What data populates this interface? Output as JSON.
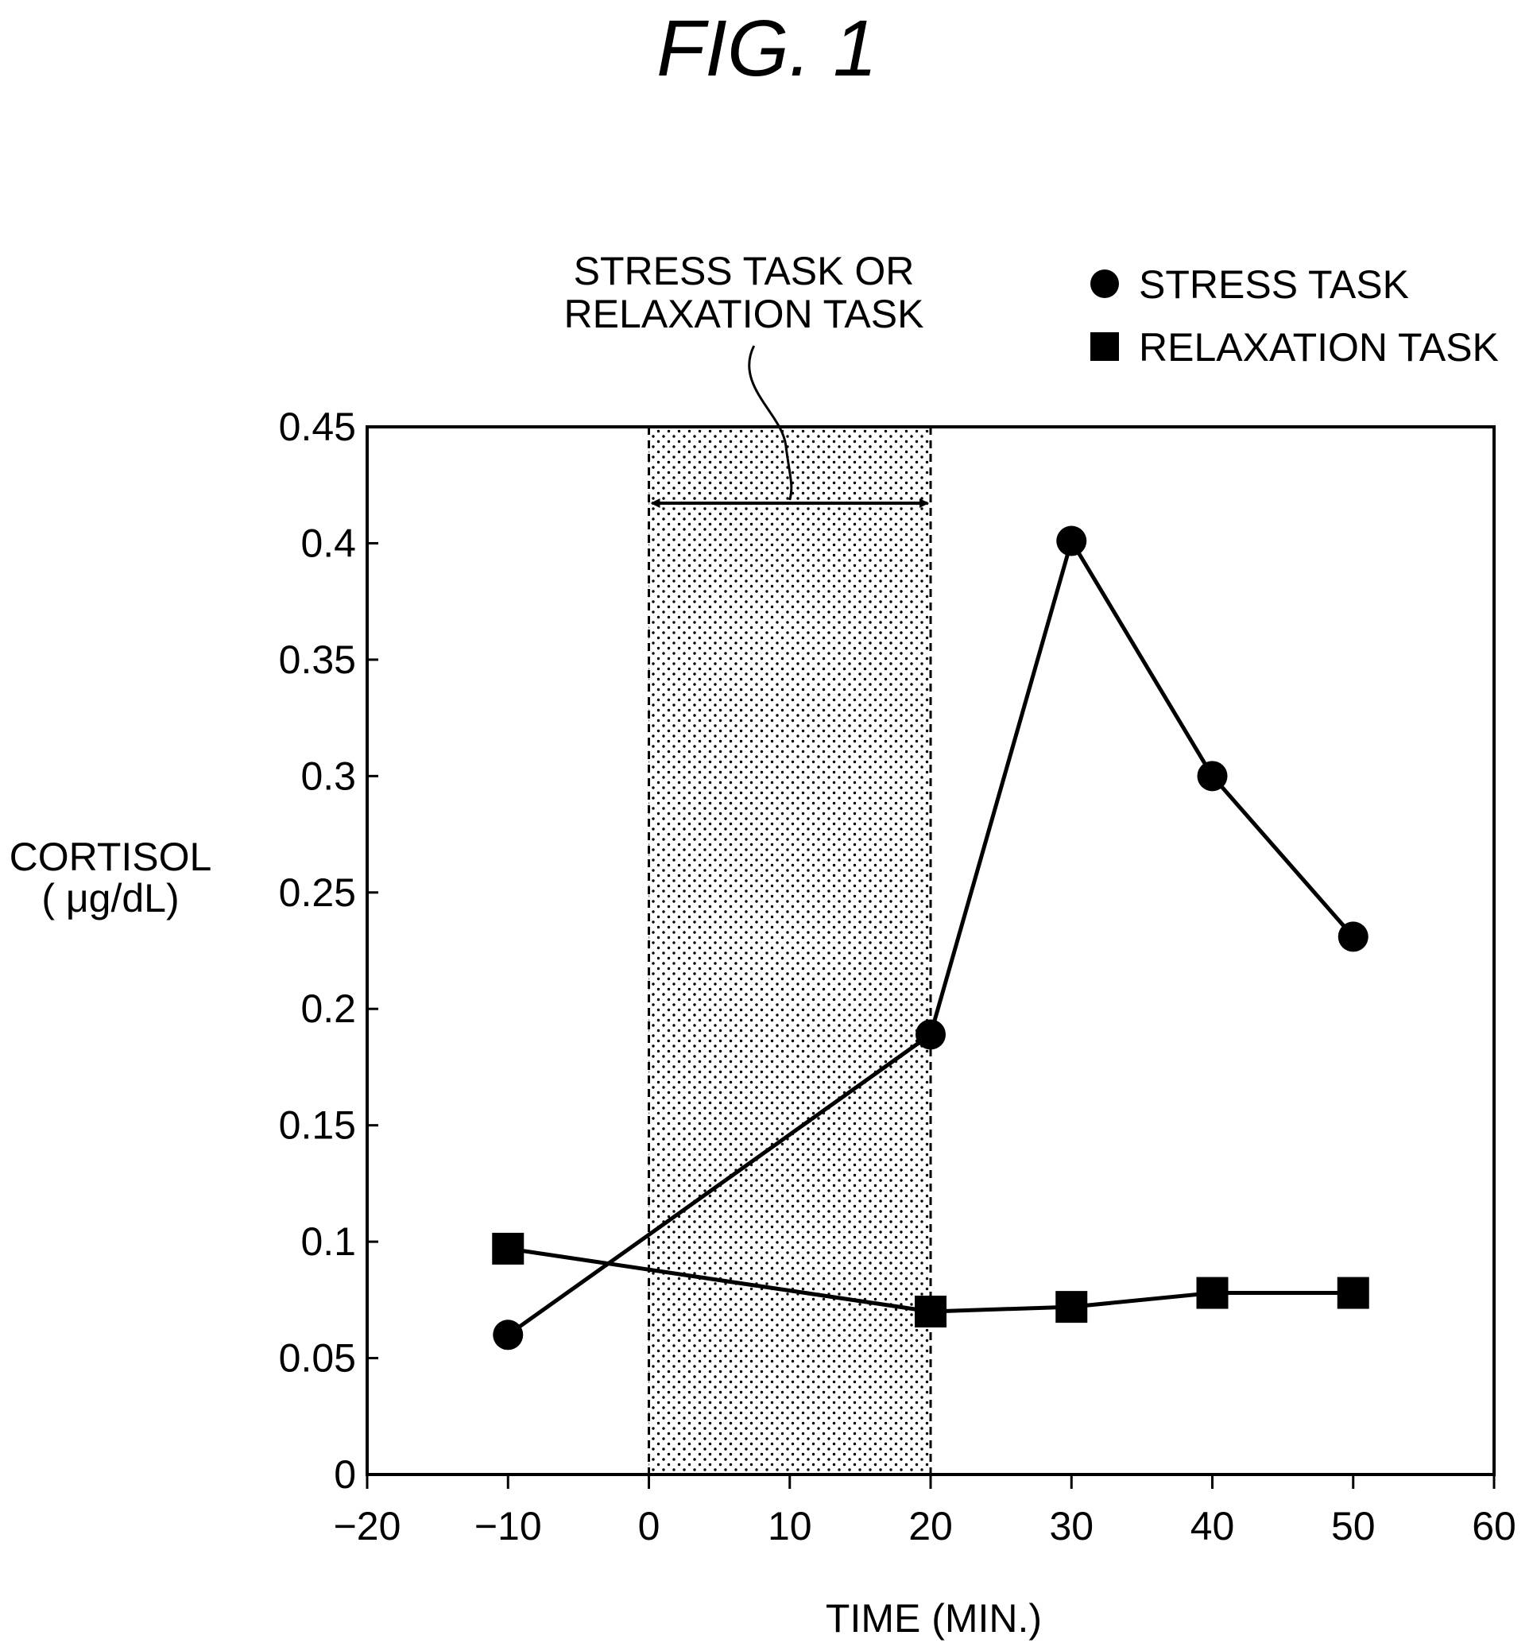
{
  "figure_label": "FIG. 1",
  "chart_data": {
    "type": "line",
    "xlabel": "TIME (MIN.)",
    "ylabel": [
      "CORTISOL",
      "( μg/dL)"
    ],
    "xlim": [
      -20,
      60
    ],
    "ylim": [
      0,
      0.45
    ],
    "xticks": [
      "−20",
      "−10",
      "0",
      "10",
      "20",
      "30",
      "40",
      "50",
      "60"
    ],
    "xtick_values": [
      -20,
      -10,
      0,
      10,
      20,
      30,
      40,
      50,
      60
    ],
    "yticks": [
      "0",
      "0.05",
      "0.1",
      "0.15",
      "0.2",
      "0.25",
      "0.3",
      "0.35",
      "0.4",
      "0.45"
    ],
    "ytick_values": [
      0,
      0.05,
      0.1,
      0.15,
      0.2,
      0.25,
      0.3,
      0.35,
      0.4,
      0.45
    ],
    "grid": false,
    "legend_position": "top-right",
    "series": [
      {
        "name": "STRESS TASK",
        "marker": "circle",
        "x": [
          -10,
          20,
          30,
          40,
          50
        ],
        "y": [
          0.06,
          0.189,
          0.401,
          0.3,
          0.231
        ]
      },
      {
        "name": "RELAXATION TASK",
        "marker": "square",
        "x": [
          -10,
          20,
          30,
          40,
          50
        ],
        "y": [
          0.097,
          0.07,
          0.072,
          0.078,
          0.078
        ]
      }
    ],
    "shaded_region": {
      "x_start": 0,
      "x_end": 20,
      "pattern": "dotted",
      "label": [
        "STRESS TASK OR",
        "RELAXATION TASK"
      ]
    }
  },
  "colors": {
    "ink": "#000000",
    "background": "#ffffff"
  }
}
